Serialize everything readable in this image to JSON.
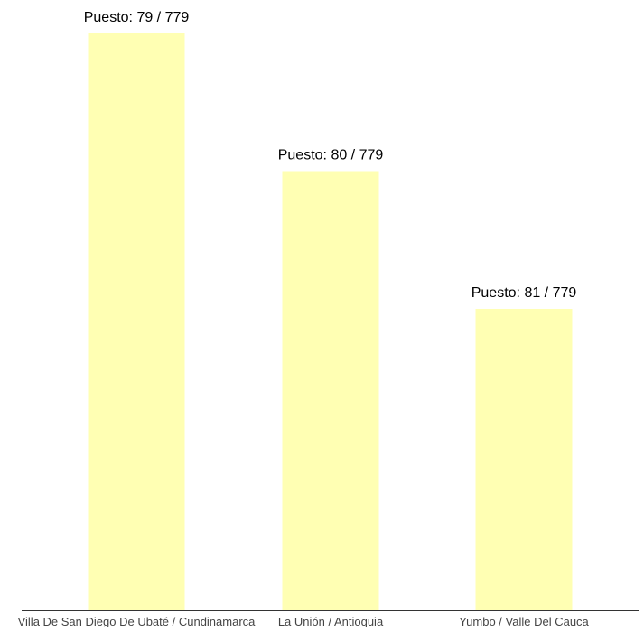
{
  "chart_data": {
    "type": "bar",
    "categories": [
      "Villa De San Diego De Ubaté / Cundinamarca",
      "La Unión / Antioquia",
      "Yumbo / Valle Del Cauca"
    ],
    "values": [
      79,
      80,
      81
    ],
    "data_labels": [
      "Puesto: 79 / 779",
      "Puesto: 80 / 779",
      "Puesto: 81 / 779"
    ],
    "bar_color": "#ffffb3",
    "axis_color": "#333333",
    "title": "",
    "xlabel": "",
    "ylabel": "",
    "grid": false,
    "legend": "none"
  }
}
